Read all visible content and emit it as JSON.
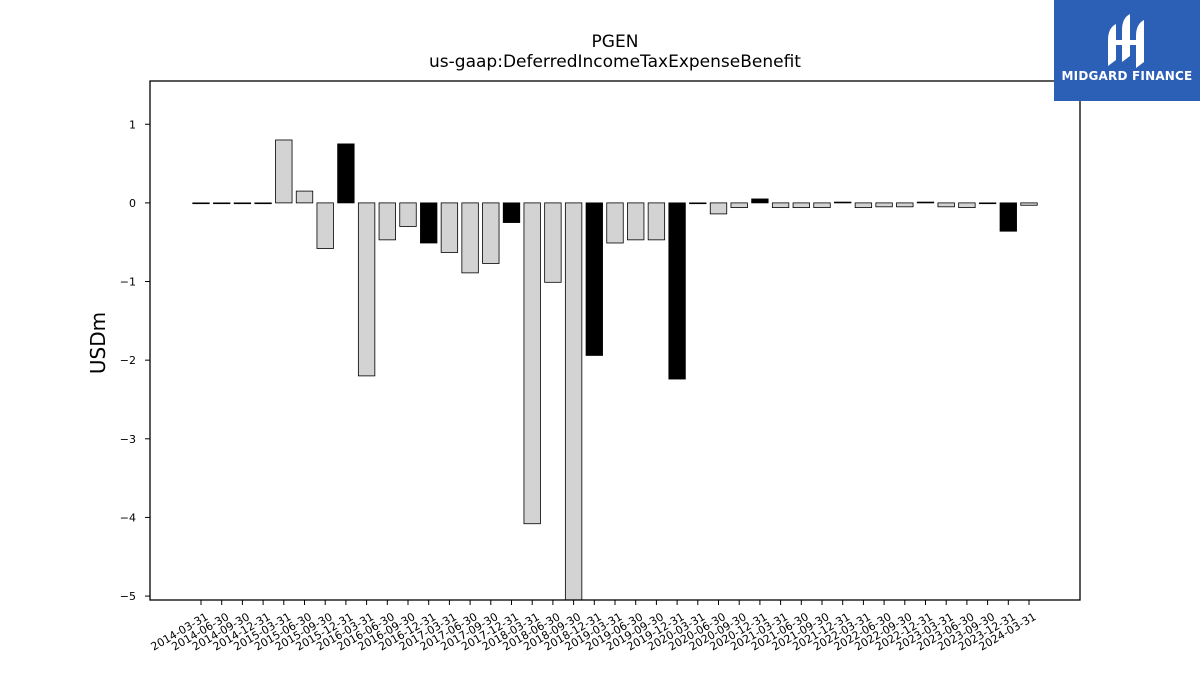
{
  "chart_data": {
    "type": "bar",
    "title": "PGEN",
    "subtitle": "us-gaap:DeferredIncomeTaxExpenseBenefit",
    "xlabel": "",
    "ylabel": "USDm",
    "ylim": [
      -5.05,
      1.55
    ],
    "yticks": [
      1,
      0,
      -1,
      -2,
      -3,
      -4,
      -5
    ],
    "ytick_labels": [
      "1",
      "0",
      "−1",
      "−2",
      "−3",
      "−4",
      "−5"
    ],
    "grid": false,
    "colors": {
      "regular": "#d3d3d3",
      "highlight": "#000000",
      "edge": "#000000"
    },
    "categories": [
      "2014-03-31",
      "2014-06-30",
      "2014-09-30",
      "2014-12-31",
      "2015-03-31",
      "2015-06-30",
      "2015-09-30",
      "2015-12-31",
      "2016-03-31",
      "2016-06-30",
      "2016-09-30",
      "2016-12-31",
      "2017-03-31",
      "2017-06-30",
      "2017-09-30",
      "2017-12-31",
      "2018-03-31",
      "2018-06-30",
      "2018-09-30",
      "2018-12-31",
      "2019-03-31",
      "2019-06-30",
      "2019-09-30",
      "2019-12-31",
      "2020-03-31",
      "2020-06-30",
      "2020-09-30",
      "2020-12-31",
      "2021-03-31",
      "2021-06-30",
      "2021-09-30",
      "2021-12-31",
      "2022-03-31",
      "2022-06-30",
      "2022-09-30",
      "2022-12-31",
      "2023-03-31",
      "2023-06-30",
      "2023-09-30",
      "2023-12-31",
      "2024-03-31"
    ],
    "values": [
      0,
      0,
      0,
      0,
      0.8,
      0.15,
      -0.58,
      0.75,
      -2.2,
      -0.47,
      -0.3,
      -0.51,
      -0.63,
      -0.89,
      -0.77,
      -0.25,
      -4.08,
      -1.01,
      -5.1,
      -1.94,
      -0.51,
      -0.47,
      -0.47,
      -2.24,
      0,
      -0.14,
      -0.06,
      0.05,
      -0.06,
      -0.06,
      -0.06,
      0.01,
      -0.06,
      -0.05,
      -0.05,
      0.01,
      -0.05,
      -0.06,
      -0.01,
      -0.36,
      -0.03
    ],
    "highlight": [
      false,
      false,
      false,
      false,
      false,
      false,
      false,
      true,
      false,
      false,
      false,
      true,
      false,
      false,
      false,
      true,
      false,
      false,
      false,
      true,
      false,
      false,
      false,
      true,
      false,
      false,
      false,
      true,
      false,
      false,
      false,
      false,
      false,
      false,
      false,
      false,
      false,
      false,
      false,
      true,
      false
    ]
  },
  "logo": {
    "text": "MIDGARD FINANCE",
    "icon": "midgard-logo-icon",
    "background": "#2c5fb6"
  }
}
